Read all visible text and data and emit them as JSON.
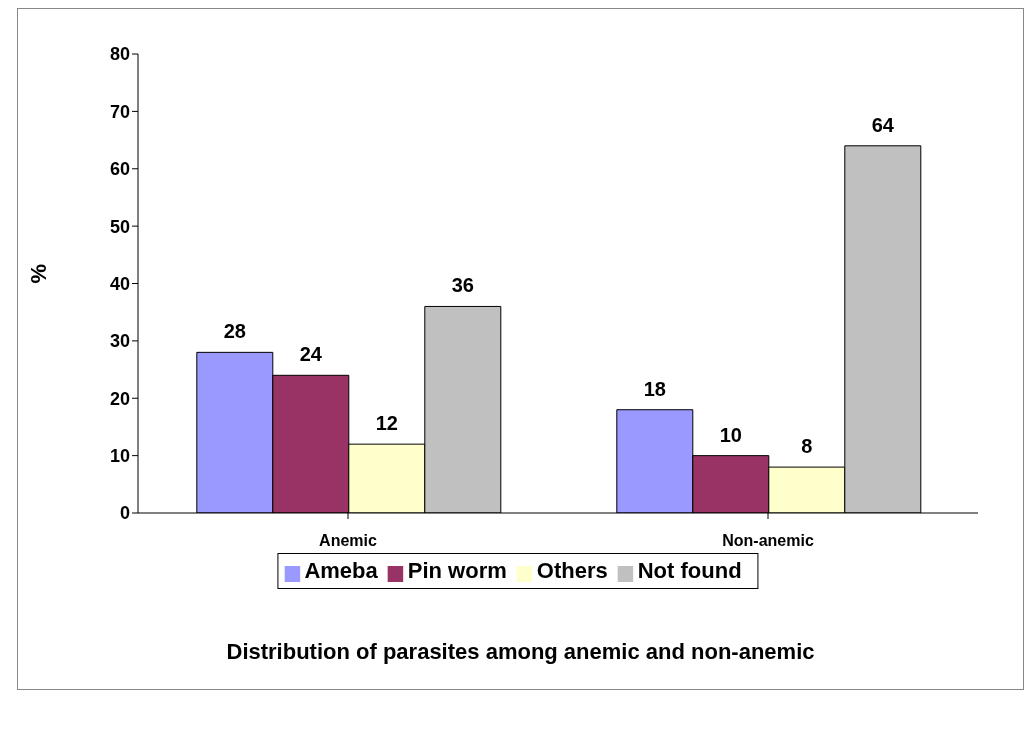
{
  "chart_data": {
    "type": "bar",
    "title": "Distribution of parasites among anemic and non-anemic",
    "ylabel": "%",
    "categories": [
      "Anemic",
      "Non-anemic"
    ],
    "series": [
      {
        "name": "Ameba",
        "color": "#9999ff",
        "values": [
          28,
          18
        ]
      },
      {
        "name": "Pin worm",
        "color": "#993366",
        "values": [
          24,
          10
        ]
      },
      {
        "name": "Others",
        "color": "#ffffcc",
        "values": [
          12,
          8
        ]
      },
      {
        "name": "Not found",
        "color": "#c0c0c0",
        "values": [
          36,
          64
        ]
      }
    ],
    "ylim": [
      0,
      80
    ],
    "yticks": [
      0,
      10,
      20,
      30,
      40,
      50,
      60,
      70,
      80
    ],
    "grid": false,
    "legend": "bottom",
    "data_labels": true
  }
}
